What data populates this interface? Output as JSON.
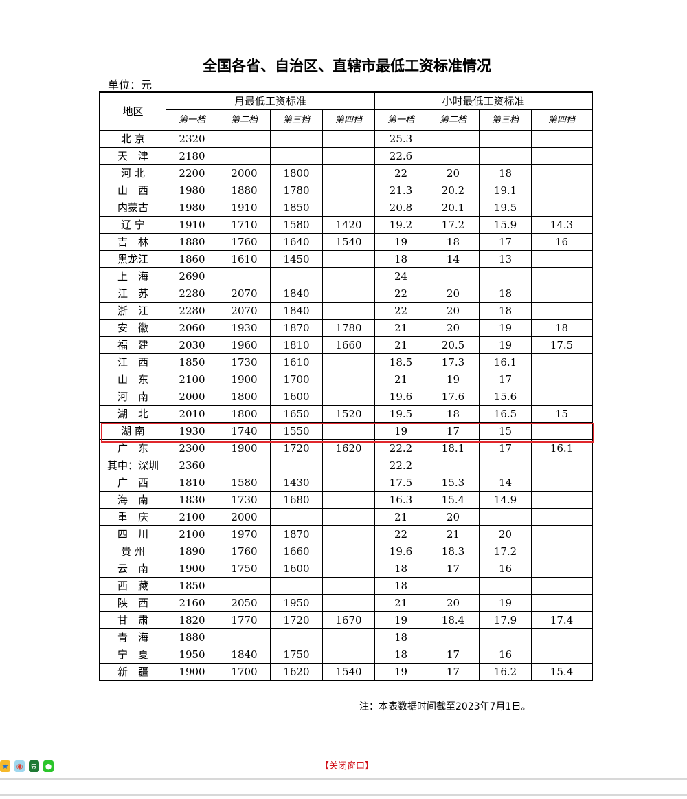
{
  "title": "全国各省、自治区、直辖市最低工资标准情况",
  "unit": "单位：元",
  "headers": {
    "region": "地区",
    "monthly": "月最低工资标准",
    "hourly": "小时最低工资标准",
    "tiers": [
      "第一档",
      "第二档",
      "第三档",
      "第四档"
    ]
  },
  "rows": [
    [
      "北 京",
      "2320",
      "",
      "",
      "",
      "25.3",
      "",
      "",
      ""
    ],
    [
      "天　津",
      "2180",
      "",
      "",
      "",
      "22.6",
      "",
      "",
      ""
    ],
    [
      "河 北",
      "2200",
      "2000",
      "1800",
      "",
      "22",
      "20",
      "18",
      ""
    ],
    [
      "山　西",
      "1980",
      "1880",
      "1780",
      "",
      "21.3",
      "20.2",
      "19.1",
      ""
    ],
    [
      "内蒙古",
      "1980",
      "1910",
      "1850",
      "",
      "20.8",
      "20.1",
      "19.5",
      ""
    ],
    [
      "辽 宁",
      "1910",
      "1710",
      "1580",
      "1420",
      "19.2",
      "17.2",
      "15.9",
      "14.3"
    ],
    [
      "吉　林",
      "1880",
      "1760",
      "1640",
      "1540",
      "19",
      "18",
      "17",
      "16"
    ],
    [
      "黑龙江",
      "1860",
      "1610",
      "1450",
      "",
      "18",
      "14",
      "13",
      ""
    ],
    [
      "上　海",
      "2690",
      "",
      "",
      "",
      "24",
      "",
      "",
      ""
    ],
    [
      "江　苏",
      "2280",
      "2070",
      "1840",
      "",
      "22",
      "20",
      "18",
      ""
    ],
    [
      "浙　江",
      "2280",
      "2070",
      "1840",
      "",
      "22",
      "20",
      "18",
      ""
    ],
    [
      "安　徽",
      "2060",
      "1930",
      "1870",
      "1780",
      "21",
      "20",
      "19",
      "18"
    ],
    [
      "福　建",
      "2030",
      "1960",
      "1810",
      "1660",
      "21",
      "20.5",
      "19",
      "17.5"
    ],
    [
      "江　西",
      "1850",
      "1730",
      "1610",
      "",
      "18.5",
      "17.3",
      "16.1",
      ""
    ],
    [
      "山　东",
      "2100",
      "1900",
      "1700",
      "",
      "21",
      "19",
      "17",
      ""
    ],
    [
      "河　南",
      "2000",
      "1800",
      "1600",
      "",
      "19.6",
      "17.6",
      "15.6",
      ""
    ],
    [
      "湖　北",
      "2010",
      "1800",
      "1650",
      "1520",
      "19.5",
      "18",
      "16.5",
      "15"
    ],
    [
      "湖 南",
      "1930",
      "1740",
      "1550",
      "",
      "19",
      "17",
      "15",
      ""
    ],
    [
      "广　东",
      "2300",
      "1900",
      "1720",
      "1620",
      "22.2",
      "18.1",
      "17",
      "16.1"
    ],
    [
      "其中：深圳",
      "2360",
      "",
      "",
      "",
      "22.2",
      "",
      "",
      ""
    ],
    [
      "广　西",
      "1810",
      "1580",
      "1430",
      "",
      "17.5",
      "15.3",
      "14",
      ""
    ],
    [
      "海　南",
      "1830",
      "1730",
      "1680",
      "",
      "16.3",
      "15.4",
      "14.9",
      ""
    ],
    [
      "重　庆",
      "2100",
      "2000",
      "",
      "",
      "21",
      "20",
      "",
      ""
    ],
    [
      "四　川",
      "2100",
      "1970",
      "1870",
      "",
      "22",
      "21",
      "20",
      ""
    ],
    [
      "贵 州",
      "1890",
      "1760",
      "1660",
      "",
      "19.6",
      "18.3",
      "17.2",
      ""
    ],
    [
      "云　南",
      "1900",
      "1750",
      "1600",
      "",
      "18",
      "17",
      "16",
      ""
    ],
    [
      "西　藏",
      "1850",
      "",
      "",
      "",
      "18",
      "",
      "",
      ""
    ],
    [
      "陕　西",
      "2160",
      "2050",
      "1950",
      "",
      "21",
      "20",
      "19",
      ""
    ],
    [
      "甘　肃",
      "1820",
      "1770",
      "1720",
      "1670",
      "19",
      "18.4",
      "17.9",
      "17.4"
    ],
    [
      "青　海",
      "1880",
      "",
      "",
      "",
      "18",
      "",
      "",
      ""
    ],
    [
      "宁　夏",
      "1950",
      "1840",
      "1750",
      "",
      "18",
      "17",
      "16",
      ""
    ],
    [
      "新　疆",
      "1900",
      "1700",
      "1620",
      "1540",
      "19",
      "17",
      "16.2",
      "15.4"
    ]
  ],
  "highlight_row": "湖 南",
  "highlight_color": "#e0262b",
  "note": "注：本表数据时间截至2023年7月1日。",
  "close_label": "【关闭窗口】",
  "share_icons": [
    "qzone-icon",
    "weibo-icon",
    "douban-icon",
    "wechat-icon"
  ]
}
